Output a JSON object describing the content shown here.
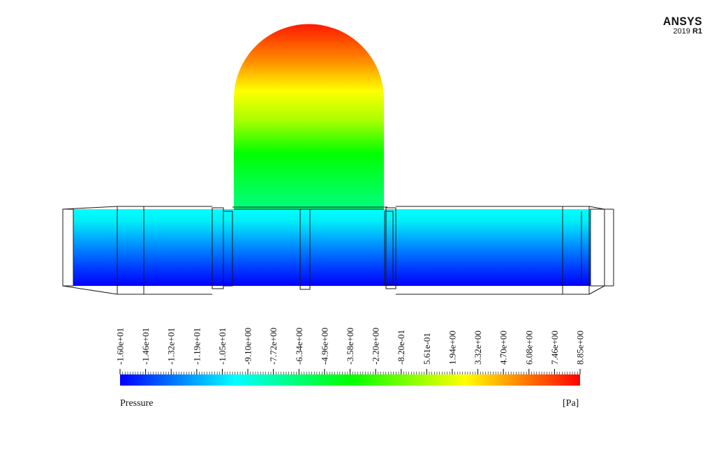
{
  "logo": {
    "brand": "ANSYS",
    "version_year": "2019",
    "version_release": "R1"
  },
  "legend": {
    "title": "Pressure",
    "unit": "[Pa]",
    "ticks": [
      "-1.60e+01",
      "-1.46e+01",
      "-1.32e+01",
      "-1.19e+01",
      "-1.05e+01",
      "-9.10e+00",
      "-7.72e+00",
      "-6.34e+00",
      "-4.96e+00",
      "-3.58e+00",
      "-2.20e+00",
      "-8.20e-01",
      "5.61e-01",
      "1.94e+00",
      "3.32e+00",
      "4.70e+00",
      "6.08e+00",
      "7.46e+00",
      "8.85e+00"
    ],
    "colors": [
      "#0000ff",
      "#00ffff",
      "#00ff00",
      "#ffff00",
      "#ff0000"
    ]
  }
}
